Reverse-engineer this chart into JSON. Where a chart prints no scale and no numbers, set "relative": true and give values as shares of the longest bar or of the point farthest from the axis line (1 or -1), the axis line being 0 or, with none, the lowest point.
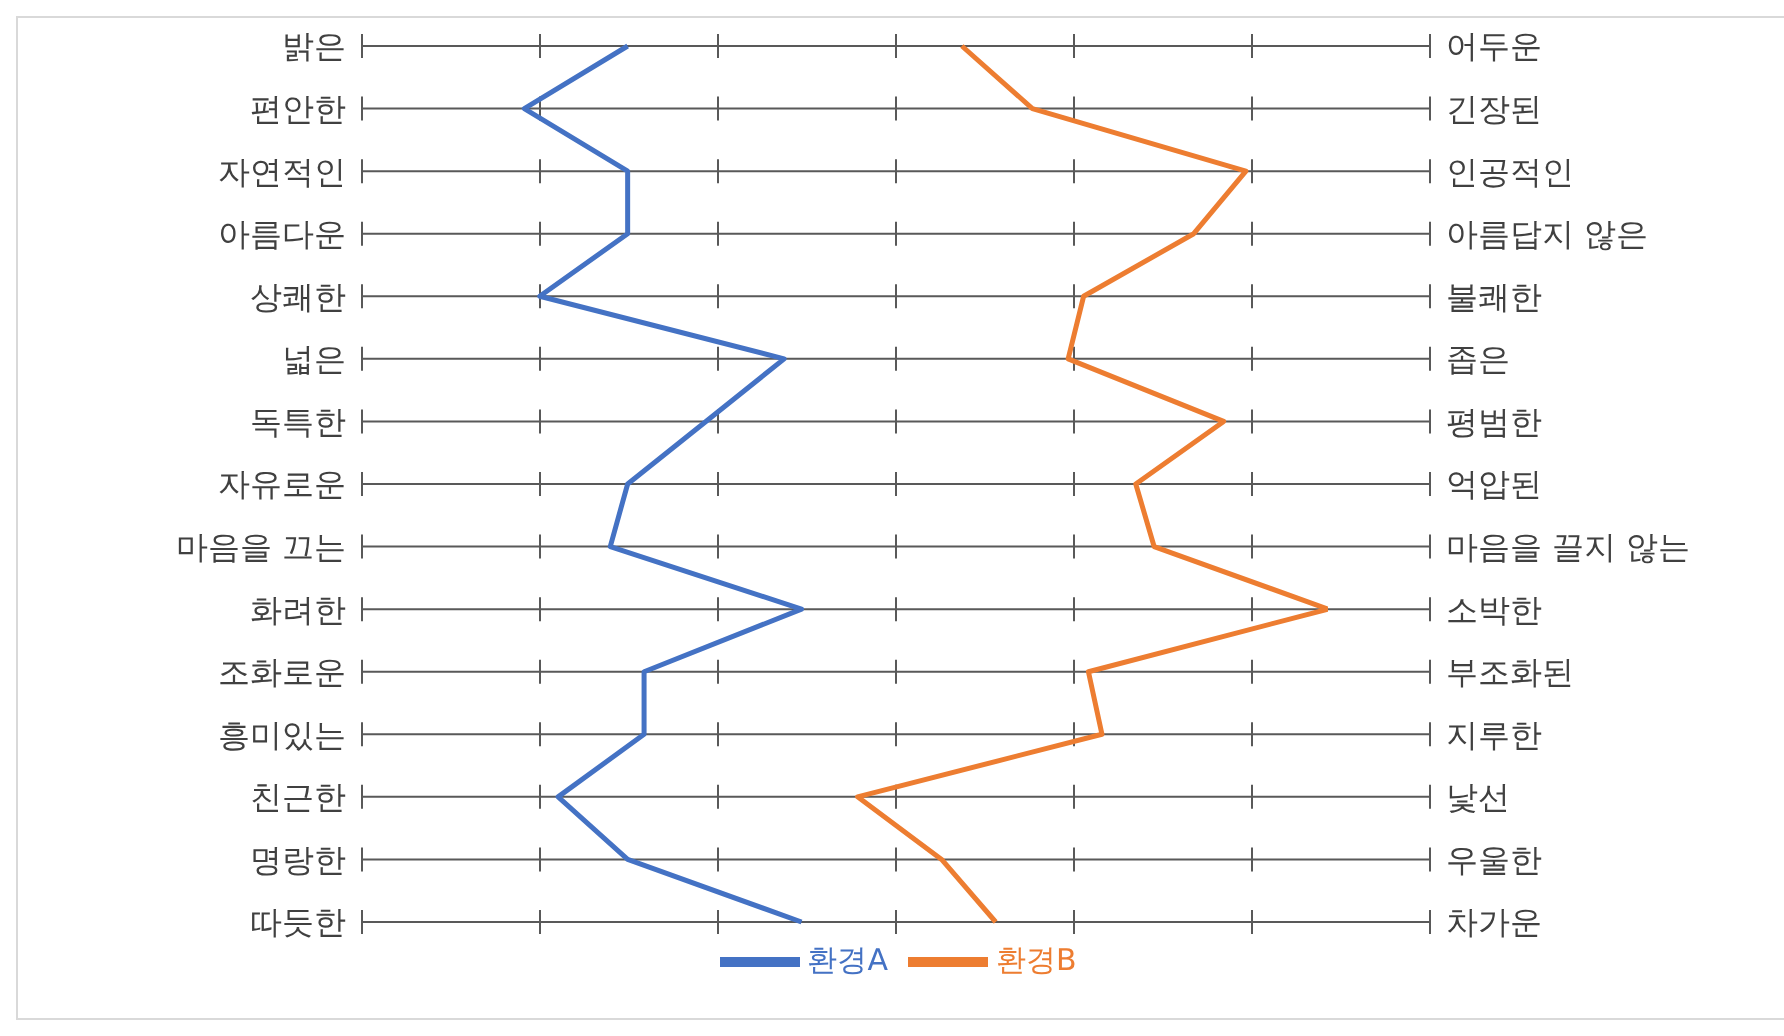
{
  "chart_data": {
    "type": "line",
    "orientation": "horizontal",
    "relative": true,
    "categories": [
      "밝은",
      "편안한",
      "자연적인",
      "아름다운",
      "상쾌한",
      "넓은",
      "독특한",
      "자유로운",
      "마음을 끄는",
      "화려한",
      "조화로운",
      "흥미있는",
      "친근한",
      "명랑한",
      "따듯한"
    ],
    "y2_categories": [
      "어두운",
      "긴장된",
      "인공적인",
      "아름답지 않은",
      "불쾌한",
      "좁은",
      "평범한",
      "억압된",
      "마음을 끌지 않는",
      "소박한",
      "부조화된",
      "지루한",
      "낯선",
      "우울한",
      "차가운"
    ],
    "series": [
      {
        "name": "환경A",
        "color": "#4472c4",
        "values": [
          0.275,
          0.168,
          0.275,
          0.275,
          0.184,
          0.437,
          0.356,
          0.275,
          0.257,
          0.455,
          0.292,
          0.292,
          0.203,
          0.275,
          0.455
        ]
      },
      {
        "name": "환경B",
        "color": "#ed7d31",
        "values": [
          0.621,
          0.694,
          0.915,
          0.861,
          0.747,
          0.731,
          0.892,
          0.801,
          0.82,
          1,
          0.752,
          0.766,
          0.513,
          0.6,
          0.656
        ]
      }
    ],
    "grid": "y",
    "legend": "bottom",
    "marker": "none",
    "line_style": "solid",
    "tick_labels": "y"
  }
}
